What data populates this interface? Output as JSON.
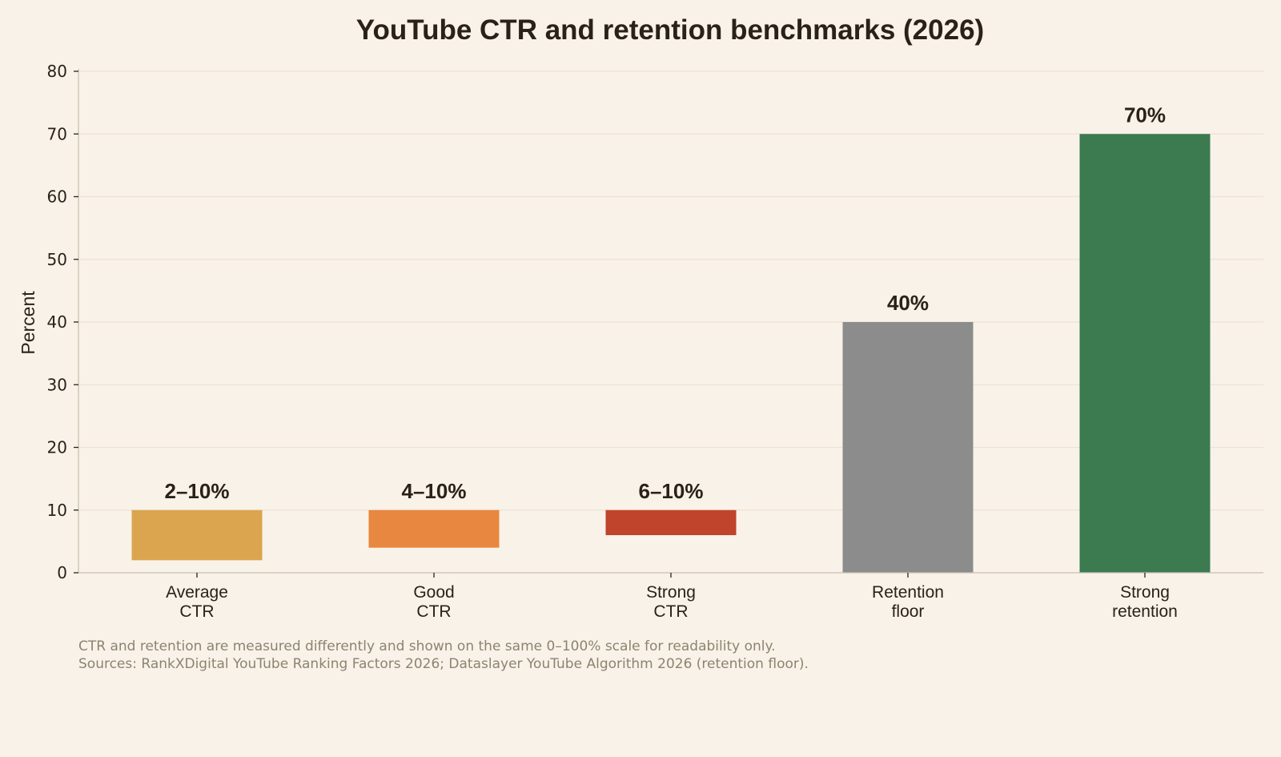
{
  "chart_data": {
    "type": "bar",
    "title": "YouTube CTR and retention benchmarks (2026)",
    "xlabel": "",
    "ylabel": "Percent",
    "ylim": [
      0,
      80
    ],
    "yticks": [
      0,
      10,
      20,
      30,
      40,
      50,
      60,
      70,
      80
    ],
    "grid": true,
    "categories": [
      [
        "Average",
        "CTR"
      ],
      [
        "Good",
        "CTR"
      ],
      [
        "Strong",
        "CTR"
      ],
      [
        "Retention",
        "floor"
      ],
      [
        "Strong",
        "retention"
      ]
    ],
    "ranges": [
      [
        2,
        10
      ],
      [
        4,
        10
      ],
      [
        6,
        10
      ],
      [
        0,
        40
      ],
      [
        0,
        70
      ]
    ],
    "labels": [
      "2–10%",
      "4–10%",
      "6–10%",
      "40%",
      "70%"
    ],
    "colors": [
      "#dba44f",
      "#e8873f",
      "#c0432c",
      "#8c8c8c",
      "#3c7a50"
    ],
    "notes": [
      "CTR and retention are measured differently and shown on the same 0–100% scale for readability only.",
      "Sources: RankXDigital YouTube Ranking Factors 2026; Dataslayer YouTube Algorithm 2026 (retention floor)."
    ]
  }
}
